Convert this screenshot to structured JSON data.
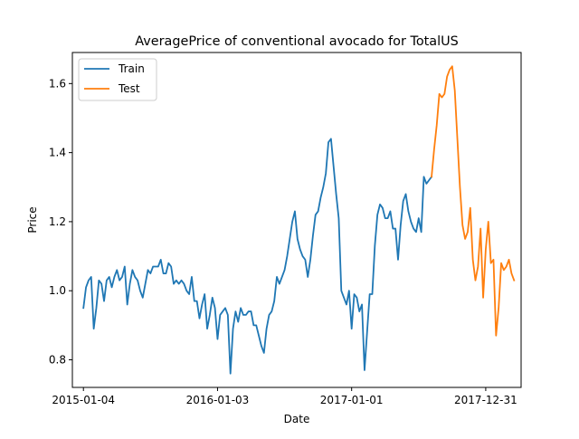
{
  "chart_data": {
    "type": "line",
    "title": "AveragePrice of conventional avocado for TotalUS",
    "xlabel": "Date",
    "ylabel": "Price",
    "x_ticks": [
      "2015-01-04",
      "2016-01-03",
      "2017-01-01",
      "2017-12-31"
    ],
    "y_ticks": [
      0.8,
      1.0,
      1.2,
      1.4,
      1.6
    ],
    "xlim": [
      "2014-12-05",
      "2018-04-06"
    ],
    "ylim": [
      0.72,
      1.69
    ],
    "grid": false,
    "legend": {
      "position": "top-left"
    },
    "series": [
      {
        "name": "Train",
        "color": "#1f77b4",
        "points": [
          [
            "2015-01-04",
            0.95
          ],
          [
            "2015-01-11",
            1.01
          ],
          [
            "2015-01-18",
            1.03
          ],
          [
            "2015-01-25",
            1.04
          ],
          [
            "2015-02-01",
            0.89
          ],
          [
            "2015-02-08",
            0.95
          ],
          [
            "2015-02-15",
            1.03
          ],
          [
            "2015-02-22",
            1.02
          ],
          [
            "2015-03-01",
            0.97
          ],
          [
            "2015-03-08",
            1.03
          ],
          [
            "2015-03-15",
            1.04
          ],
          [
            "2015-03-22",
            1.01
          ],
          [
            "2015-03-29",
            1.04
          ],
          [
            "2015-04-05",
            1.06
          ],
          [
            "2015-04-12",
            1.03
          ],
          [
            "2015-04-19",
            1.04
          ],
          [
            "2015-04-26",
            1.07
          ],
          [
            "2015-05-03",
            0.96
          ],
          [
            "2015-05-10",
            1.02
          ],
          [
            "2015-05-17",
            1.06
          ],
          [
            "2015-05-24",
            1.04
          ],
          [
            "2015-05-31",
            1.03
          ],
          [
            "2015-06-07",
            1.0
          ],
          [
            "2015-06-14",
            0.98
          ],
          [
            "2015-06-21",
            1.02
          ],
          [
            "2015-06-28",
            1.06
          ],
          [
            "2015-07-05",
            1.05
          ],
          [
            "2015-07-12",
            1.07
          ],
          [
            "2015-07-19",
            1.07
          ],
          [
            "2015-07-26",
            1.07
          ],
          [
            "2015-08-02",
            1.09
          ],
          [
            "2015-08-09",
            1.05
          ],
          [
            "2015-08-16",
            1.05
          ],
          [
            "2015-08-23",
            1.08
          ],
          [
            "2015-08-30",
            1.07
          ],
          [
            "2015-09-06",
            1.02
          ],
          [
            "2015-09-13",
            1.03
          ],
          [
            "2015-09-20",
            1.02
          ],
          [
            "2015-09-27",
            1.03
          ],
          [
            "2015-10-04",
            1.02
          ],
          [
            "2015-10-11",
            1.0
          ],
          [
            "2015-10-18",
            0.99
          ],
          [
            "2015-10-25",
            1.04
          ],
          [
            "2015-11-01",
            0.97
          ],
          [
            "2015-11-08",
            0.97
          ],
          [
            "2015-11-15",
            0.92
          ],
          [
            "2015-11-22",
            0.96
          ],
          [
            "2015-11-29",
            0.99
          ],
          [
            "2015-12-06",
            0.89
          ],
          [
            "2015-12-13",
            0.93
          ],
          [
            "2015-12-20",
            0.98
          ],
          [
            "2015-12-27",
            0.95
          ],
          [
            "2016-01-03",
            0.86
          ],
          [
            "2016-01-10",
            0.93
          ],
          [
            "2016-01-17",
            0.94
          ],
          [
            "2016-01-24",
            0.95
          ],
          [
            "2016-01-31",
            0.93
          ],
          [
            "2016-02-07",
            0.76
          ],
          [
            "2016-02-14",
            0.89
          ],
          [
            "2016-02-21",
            0.94
          ],
          [
            "2016-02-28",
            0.91
          ],
          [
            "2016-03-06",
            0.95
          ],
          [
            "2016-03-13",
            0.93
          ],
          [
            "2016-03-20",
            0.93
          ],
          [
            "2016-03-27",
            0.94
          ],
          [
            "2016-04-03",
            0.94
          ],
          [
            "2016-04-10",
            0.9
          ],
          [
            "2016-04-17",
            0.9
          ],
          [
            "2016-04-24",
            0.87
          ],
          [
            "2016-05-01",
            0.84
          ],
          [
            "2016-05-08",
            0.82
          ],
          [
            "2016-05-15",
            0.89
          ],
          [
            "2016-05-22",
            0.93
          ],
          [
            "2016-05-29",
            0.94
          ],
          [
            "2016-06-05",
            0.97
          ],
          [
            "2016-06-12",
            1.04
          ],
          [
            "2016-06-19",
            1.02
          ],
          [
            "2016-06-26",
            1.04
          ],
          [
            "2016-07-03",
            1.06
          ],
          [
            "2016-07-10",
            1.1
          ],
          [
            "2016-07-17",
            1.15
          ],
          [
            "2016-07-24",
            1.2
          ],
          [
            "2016-07-31",
            1.23
          ],
          [
            "2016-08-07",
            1.15
          ],
          [
            "2016-08-14",
            1.12
          ],
          [
            "2016-08-21",
            1.1
          ],
          [
            "2016-08-28",
            1.09
          ],
          [
            "2016-09-04",
            1.04
          ],
          [
            "2016-09-11",
            1.09
          ],
          [
            "2016-09-18",
            1.16
          ],
          [
            "2016-09-25",
            1.22
          ],
          [
            "2016-10-02",
            1.23
          ],
          [
            "2016-10-09",
            1.27
          ],
          [
            "2016-10-16",
            1.3
          ],
          [
            "2016-10-23",
            1.34
          ],
          [
            "2016-10-30",
            1.43
          ],
          [
            "2016-11-06",
            1.44
          ],
          [
            "2016-11-13",
            1.36
          ],
          [
            "2016-11-20",
            1.28
          ],
          [
            "2016-11-27",
            1.21
          ],
          [
            "2016-12-04",
            1.0
          ],
          [
            "2016-12-11",
            0.98
          ],
          [
            "2016-12-18",
            0.96
          ],
          [
            "2016-12-25",
            1.0
          ],
          [
            "2017-01-01",
            0.89
          ],
          [
            "2017-01-08",
            0.99
          ],
          [
            "2017-01-15",
            0.98
          ],
          [
            "2017-01-22",
            0.94
          ],
          [
            "2017-01-29",
            0.96
          ],
          [
            "2017-02-05",
            0.77
          ],
          [
            "2017-02-12",
            0.88
          ],
          [
            "2017-02-19",
            0.99
          ],
          [
            "2017-02-26",
            0.99
          ],
          [
            "2017-03-05",
            1.13
          ],
          [
            "2017-03-12",
            1.22
          ],
          [
            "2017-03-19",
            1.25
          ],
          [
            "2017-03-26",
            1.24
          ],
          [
            "2017-04-02",
            1.21
          ],
          [
            "2017-04-09",
            1.21
          ],
          [
            "2017-04-16",
            1.23
          ],
          [
            "2017-04-23",
            1.18
          ],
          [
            "2017-04-30",
            1.18
          ],
          [
            "2017-05-07",
            1.09
          ],
          [
            "2017-05-14",
            1.19
          ],
          [
            "2017-05-21",
            1.26
          ],
          [
            "2017-05-28",
            1.28
          ],
          [
            "2017-06-04",
            1.23
          ],
          [
            "2017-06-11",
            1.2
          ],
          [
            "2017-06-18",
            1.18
          ],
          [
            "2017-06-25",
            1.17
          ],
          [
            "2017-07-02",
            1.21
          ],
          [
            "2017-07-09",
            1.17
          ],
          [
            "2017-07-16",
            1.33
          ],
          [
            "2017-07-23",
            1.31
          ],
          [
            "2017-07-30",
            1.32
          ],
          [
            "2017-08-06",
            1.33
          ]
        ]
      },
      {
        "name": "Test",
        "color": "#ff7f0e",
        "points": [
          [
            "2017-08-06",
            1.33
          ],
          [
            "2017-08-13",
            1.41
          ],
          [
            "2017-08-20",
            1.48
          ],
          [
            "2017-08-27",
            1.57
          ],
          [
            "2017-09-03",
            1.56
          ],
          [
            "2017-09-10",
            1.57
          ],
          [
            "2017-09-17",
            1.62
          ],
          [
            "2017-09-24",
            1.64
          ],
          [
            "2017-10-01",
            1.65
          ],
          [
            "2017-10-08",
            1.58
          ],
          [
            "2017-10-15",
            1.44
          ],
          [
            "2017-10-22",
            1.3
          ],
          [
            "2017-10-29",
            1.19
          ],
          [
            "2017-11-05",
            1.15
          ],
          [
            "2017-11-12",
            1.17
          ],
          [
            "2017-11-19",
            1.24
          ],
          [
            "2017-11-26",
            1.09
          ],
          [
            "2017-12-03",
            1.03
          ],
          [
            "2017-12-10",
            1.07
          ],
          [
            "2017-12-17",
            1.18
          ],
          [
            "2017-12-24",
            0.98
          ],
          [
            "2017-12-31",
            1.12
          ],
          [
            "2018-01-07",
            1.2
          ],
          [
            "2018-01-14",
            1.08
          ],
          [
            "2018-01-21",
            1.09
          ],
          [
            "2018-01-28",
            0.87
          ],
          [
            "2018-02-04",
            0.95
          ],
          [
            "2018-02-11",
            1.08
          ],
          [
            "2018-02-18",
            1.06
          ],
          [
            "2018-02-25",
            1.07
          ],
          [
            "2018-03-04",
            1.09
          ],
          [
            "2018-03-11",
            1.05
          ],
          [
            "2018-03-18",
            1.03
          ]
        ]
      }
    ]
  }
}
